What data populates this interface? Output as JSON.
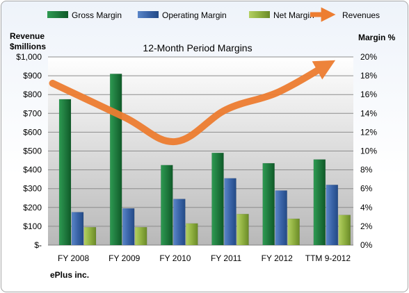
{
  "chart_data": {
    "type": "bar",
    "title": "12-Month Period Margins",
    "company": "ePlus inc.",
    "categories": [
      "FY 2008",
      "FY 2009",
      "FY 2010",
      "FY 2011",
      "FY 2012",
      "TTM 9-2012"
    ],
    "left_axis_title": [
      "Revenue",
      "$millions"
    ],
    "right_axis_title": "Margin %",
    "left_ticks": [
      "$-",
      "$100",
      "$200",
      "$300",
      "$400",
      "$500",
      "$600",
      "$700",
      "$800",
      "$900",
      "$1,000"
    ],
    "right_ticks": [
      "0%",
      "2%",
      "4%",
      "6%",
      "8%",
      "10%",
      "12%",
      "14%",
      "16%",
      "18%",
      "20%"
    ],
    "ylim_left": [
      0,
      1000
    ],
    "ylim_right": [
      0,
      20
    ],
    "grid": true,
    "legend_position": "top",
    "series": [
      {
        "name": "Gross Margin",
        "axis": "right",
        "kind": "bar",
        "color": "#1f7a3e",
        "values": [
          15.5,
          18.2,
          8.5,
          9.8,
          8.7,
          9.1
        ]
      },
      {
        "name": "Operating Margin",
        "axis": "right",
        "kind": "bar",
        "color": "#3a64a8",
        "values": [
          3.5,
          3.9,
          4.9,
          7.1,
          5.8,
          6.4
        ]
      },
      {
        "name": "Net Margin",
        "axis": "right",
        "kind": "bar",
        "color": "#8fb040",
        "values": [
          1.9,
          1.9,
          2.3,
          3.3,
          2.8,
          3.2
        ]
      },
      {
        "name": "Revenues",
        "axis": "left",
        "kind": "line",
        "color": "#ed7d31",
        "values": [
          860,
          680,
          550,
          720,
          810,
          950
        ]
      }
    ]
  }
}
